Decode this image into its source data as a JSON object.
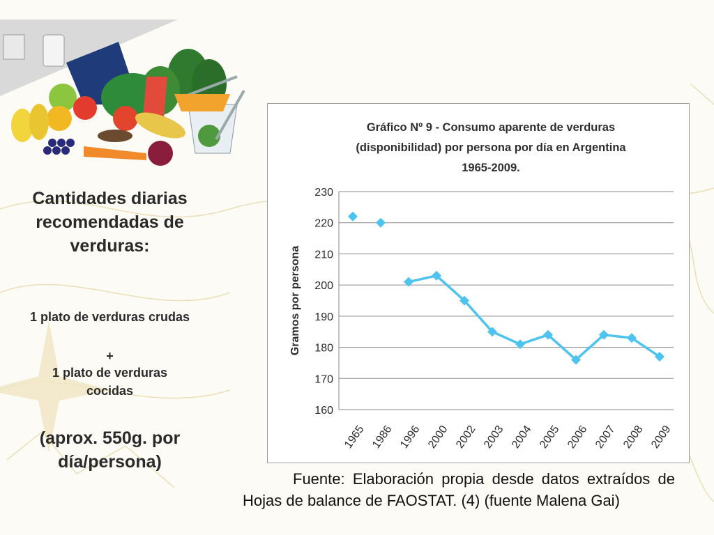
{
  "left_panel": {
    "heading": "Cantidades diarias recomendadas de verduras:",
    "line1": "1 plato de verduras crudas",
    "plus": "+",
    "line2": "1 plato de verduras cocidas",
    "approx": "(aprox. 550g. por día/persona)"
  },
  "source_text": "Fuente: Elaboración propia desde datos extraídos de Hojas de balance de FAOSTAT. (4) (fuente Malena Gai)",
  "colors": {
    "series": "#4dc3f0",
    "grid": "#8a8a8a",
    "text": "#2a2a2a"
  },
  "chart_data": {
    "type": "line",
    "title": "Gráfico Nº 9 - Consumo aparente de verduras (disponibilidad) por persona por día en Argentina 1965-2009.",
    "ylabel": "Gramos por persona",
    "xlabel": "",
    "categories": [
      "1965",
      "1986",
      "1996",
      "2000",
      "2002",
      "2003",
      "2004",
      "2005",
      "2006",
      "2007",
      "2008",
      "2009"
    ],
    "values": [
      222,
      220,
      201,
      203,
      195,
      185,
      181,
      184,
      176,
      184,
      183,
      177
    ],
    "connected_from_index": 2,
    "ylim": [
      160,
      230
    ],
    "yticks": [
      160,
      170,
      180,
      190,
      200,
      210,
      220,
      230
    ],
    "grid": true,
    "marker": "diamond",
    "legend": "none"
  }
}
